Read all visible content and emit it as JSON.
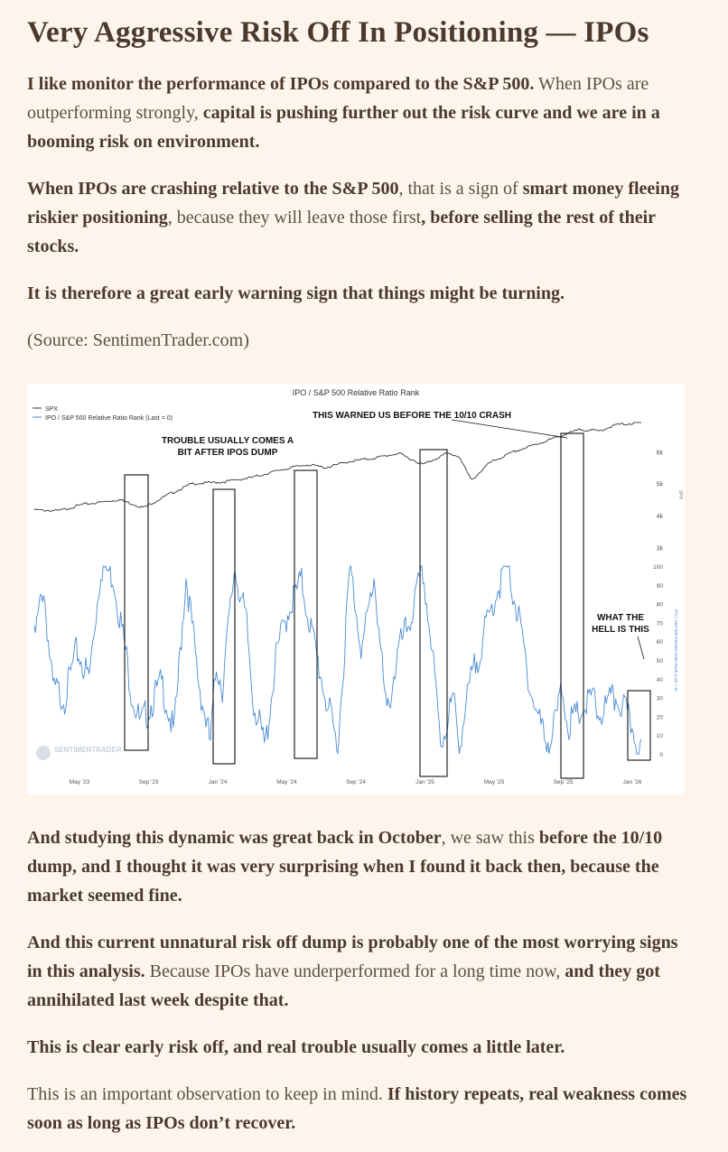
{
  "article": {
    "title": "Very Aggressive Risk Off In Positioning — IPOs",
    "p1": {
      "b1": "I like monitor the performance of IPOs compared to the S&P 500.",
      "t1": " When IPOs are outperforming strongly, ",
      "b2": "capital is pushing further out the risk curve and we are in a booming risk on environment."
    },
    "p2": {
      "b1": "When IPOs are crashing relative to the S&P 500",
      "t1": ", that is a sign of ",
      "b2": "smart money fleeing riskier positioning",
      "t2": ", because they will leave those first",
      "b3": ", before selling the rest of their stocks."
    },
    "p3": {
      "b1": "It is therefore a great early warning sign that things might be turning."
    },
    "p4": {
      "t1": "(Source: SentimenTrader.com)"
    },
    "p5": {
      "b1": "And studying this dynamic was great back in October",
      "t1": ", we saw this ",
      "b2": "before the 10/10 dump, and I thought it was very surprising when I found it back then, because the market seemed fine."
    },
    "p6": {
      "b1": "And this current unnatural risk off dump is probably one of the most worrying signs in this analysis.",
      "t1": " Because IPOs have underperformed for a long time now, ",
      "b2": "and they got annihilated last week despite that."
    },
    "p7": {
      "b1": "This is clear early risk off, and real trouble usually comes a little later."
    },
    "p8": {
      "t1": "This is an important observation to keep in mind. ",
      "b1": "If history repeats, real weakness comes soon as long as IPOs don’t recover."
    }
  },
  "chart_data": {
    "type": "line",
    "title": "IPO / S&P 500 Relative Ratio Rank",
    "legend": [
      "SPX",
      "IPO / S&P 500 Relative Ratio Rank (Last = 0)"
    ],
    "legend_position": "top-left",
    "x_ticks": [
      "May '23",
      "Sep '23",
      "Jan '24",
      "May '24",
      "Sep '24",
      "Jan '25",
      "May '25",
      "Sep '25",
      "Jan '26"
    ],
    "spx_axis_label": "SPX",
    "spx_ticks": [
      "3k",
      "4k",
      "5k",
      "6k"
    ],
    "spx_ylim": [
      2900,
      7000
    ],
    "rank_axis_label": "IPO / S&P 500 Relative Ratio Rank (Last = 0)",
    "rank_ticks": [
      "0",
      "10",
      "20",
      "30",
      "40",
      "50",
      "60",
      "70",
      "80",
      "90",
      "100"
    ],
    "rank_ylim": [
      0,
      100
    ],
    "grid": false,
    "series": [
      {
        "name": "SPX",
        "color": "#333333",
        "x": [
          0,
          0.04,
          0.08,
          0.11,
          0.14,
          0.18,
          0.22,
          0.26,
          0.31,
          0.36,
          0.41,
          0.45,
          0.48,
          0.52,
          0.56,
          0.6,
          0.64,
          0.68,
          0.7,
          0.72,
          0.75,
          0.79,
          0.83,
          0.86,
          0.9,
          0.93,
          0.96,
          1.0
        ],
        "values": [
          4180,
          4150,
          4350,
          4420,
          4500,
          4250,
          4650,
          5000,
          5050,
          5200,
          5450,
          5600,
          5500,
          5700,
          5800,
          5950,
          5600,
          5950,
          5850,
          5100,
          5650,
          6000,
          6250,
          6450,
          6700,
          6650,
          6850,
          6900
        ]
      },
      {
        "name": "IPO / S&P 500 Relative Ratio Rank (Last = 0)",
        "color": "#4a8bd3",
        "x": [
          0,
          0.015,
          0.03,
          0.05,
          0.07,
          0.09,
          0.11,
          0.13,
          0.15,
          0.16,
          0.175,
          0.19,
          0.21,
          0.23,
          0.25,
          0.27,
          0.29,
          0.3,
          0.31,
          0.33,
          0.35,
          0.36,
          0.38,
          0.4,
          0.42,
          0.44,
          0.46,
          0.48,
          0.5,
          0.52,
          0.54,
          0.56,
          0.58,
          0.6,
          0.62,
          0.64,
          0.655,
          0.67,
          0.69,
          0.7,
          0.72,
          0.74,
          0.76,
          0.78,
          0.8,
          0.82,
          0.84,
          0.85,
          0.87,
          0.88,
          0.9,
          0.92,
          0.93,
          0.95,
          0.96,
          0.97,
          0.99,
          1.0
        ],
        "values": [
          60,
          90,
          35,
          30,
          55,
          40,
          100,
          95,
          55,
          33,
          15,
          25,
          38,
          10,
          95,
          40,
          5,
          48,
          35,
          100,
          68,
          30,
          3,
          55,
          78,
          92,
          60,
          30,
          3,
          100,
          55,
          95,
          20,
          55,
          72,
          98,
          55,
          5,
          30,
          5,
          40,
          62,
          85,
          100,
          68,
          30,
          10,
          5,
          35,
          15,
          22,
          30,
          20,
          28,
          30,
          25,
          10,
          0
        ]
      }
    ],
    "annotations": [
      "THIS WARNED US BEFORE THE 10/10 CRASH",
      "TROUBLE USUALLY COMES A",
      "BIT AFTER IPOS DUMP",
      "WHAT THE",
      "HELL IS THIS"
    ],
    "watermark": "SENTIMENTRADER"
  }
}
